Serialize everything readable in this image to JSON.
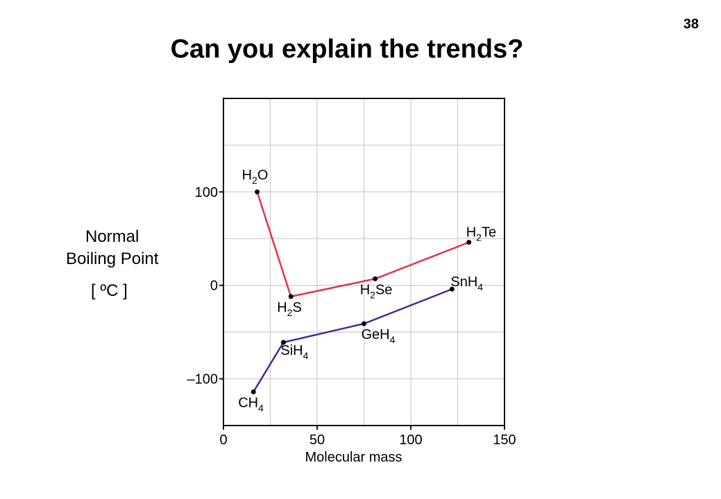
{
  "page": {
    "title": "Can you explain the trends?",
    "number": "38"
  },
  "ylabel": {
    "line1": "Normal",
    "line2": "Boiling Point",
    "unit": "[ ºC ]"
  },
  "chart_data": {
    "type": "line",
    "xlabel": "Molecular mass",
    "ylabel": "Normal Boiling Point [ ºC ]",
    "xlim": [
      0,
      150
    ],
    "ylim": [
      -150,
      200
    ],
    "xticks": [
      0,
      50,
      100,
      150
    ],
    "yticks": [
      -100,
      0,
      100
    ],
    "ytick_labels": [
      "–100",
      "0",
      "100"
    ],
    "grid": true,
    "series": [
      {
        "group": "group16-hydrides",
        "color": "#e0344e",
        "points": [
          {
            "x": 18,
            "y": 100,
            "label": "H2O"
          },
          {
            "x": 36,
            "y": -12,
            "label": "H2S"
          },
          {
            "x": 81,
            "y": 7,
            "label": "H2Se"
          },
          {
            "x": 131,
            "y": 46,
            "label": "H2Te"
          }
        ]
      },
      {
        "group": "group14-hydrides",
        "color": "#4b2a8c",
        "points": [
          {
            "x": 16,
            "y": -114,
            "label": "CH4"
          },
          {
            "x": 32,
            "y": -61,
            "label": "SiH4"
          },
          {
            "x": 75,
            "y": -41,
            "label": "GeH4"
          },
          {
            "x": 122,
            "y": -4,
            "label": "SnH4"
          }
        ]
      }
    ]
  }
}
